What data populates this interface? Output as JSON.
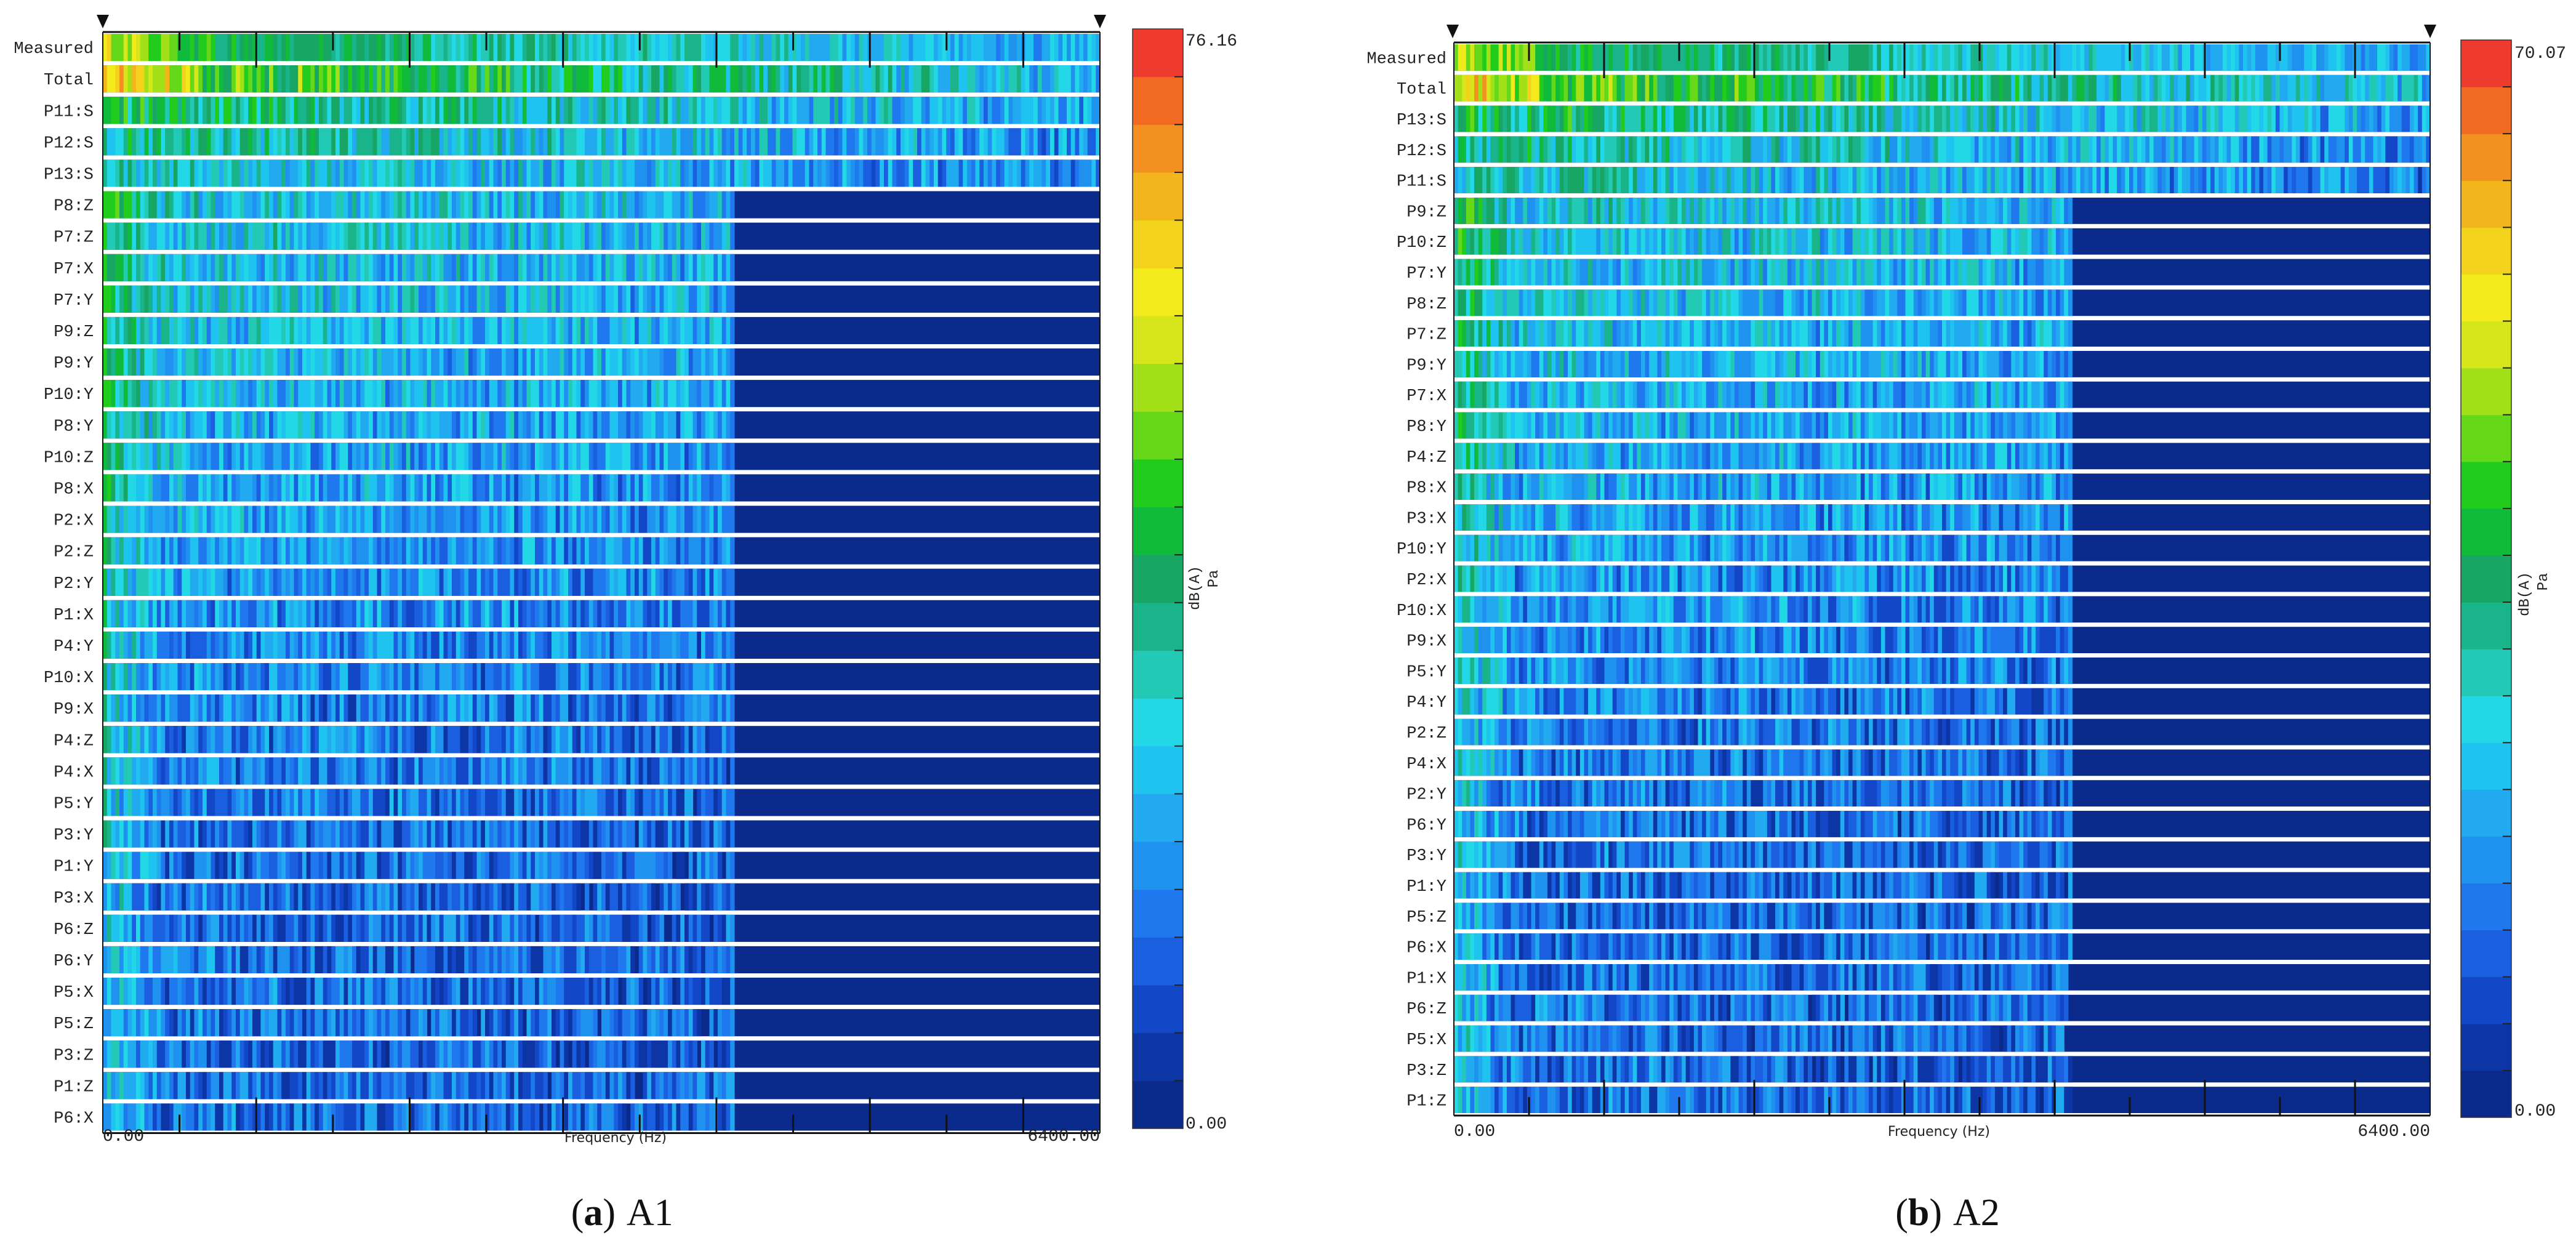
{
  "figure": {
    "panels": [
      {
        "caption_letter": "a",
        "caption_text": "A1",
        "chart_data": {
          "type": "heatmap",
          "title": "",
          "xlabel": "Frequency (Hz)",
          "ylabel": "",
          "xlim": [
            0,
            6400
          ],
          "x_tick_labels": [
            "0.00",
            "6400.00"
          ],
          "rows": [
            "Measured",
            "Total",
            "P11:S",
            "P12:S",
            "P13:S",
            "P8:Z",
            "P7:Z",
            "P7:X",
            "P7:Y",
            "P9:Z",
            "P9:Y",
            "P10:Y",
            "P8:Y",
            "P10:Z",
            "P8:X",
            "P2:X",
            "P2:Z",
            "P2:Y",
            "P1:X",
            "P4:Y",
            "P10:X",
            "P9:X",
            "P4:Z",
            "P4:X",
            "P5:Y",
            "P3:Y",
            "P1:Y",
            "P3:X",
            "P6:Z",
            "P6:Y",
            "P5:X",
            "P5:Z",
            "P3:Z",
            "P1:Z",
            "P6:X"
          ],
          "colorbar": {
            "min": 0,
            "max": 76.16,
            "min_label": "0.00",
            "max_label": "76.16",
            "unit_label": "dB(A)",
            "unit_sub": "Pa"
          },
          "active_band_hz": [
            0,
            4050
          ]
        }
      },
      {
        "caption_letter": "b",
        "caption_text": "A2",
        "chart_data": {
          "type": "heatmap",
          "title": "",
          "xlabel": "Frequency (Hz)",
          "ylabel": "",
          "xlim": [
            0,
            6400
          ],
          "x_tick_labels": [
            "0.00",
            "6400.00"
          ],
          "rows": [
            "Measured",
            "Total",
            "P13:S",
            "P12:S",
            "P11:S",
            "P9:Z",
            "P10:Z",
            "P7:Y",
            "P8:Z",
            "P7:Z",
            "P9:Y",
            "P7:X",
            "P8:Y",
            "P4:Z",
            "P8:X",
            "P3:X",
            "P10:Y",
            "P2:X",
            "P10:X",
            "P9:X",
            "P5:Y",
            "P4:Y",
            "P2:Z",
            "P4:X",
            "P2:Y",
            "P6:Y",
            "P3:Y",
            "P1:Y",
            "P5:Z",
            "P6:X",
            "P1:X",
            "P6:Z",
            "P5:X",
            "P3:Z",
            "P1:Z"
          ],
          "colorbar": {
            "min": 0,
            "max": 70.07,
            "min_label": "0.00",
            "max_label": "70.07",
            "unit_label": "dB(A)",
            "unit_sub": "Pa"
          },
          "active_band_hz": [
            0,
            4050
          ]
        }
      }
    ],
    "colors": [
      "#0a2a8c",
      "#0c35a6",
      "#1247c7",
      "#1a5fe0",
      "#1f78ee",
      "#1f92f0",
      "#22aaf0",
      "#1fc3f0",
      "#22d8e6",
      "#22c9b4",
      "#1ab48a",
      "#17a663",
      "#10bb3c",
      "#22cc1c",
      "#66d81a",
      "#a2e018",
      "#d6e61a",
      "#f2ea1a",
      "#f2d21a",
      "#f4b41c",
      "#f49020",
      "#f26a22",
      "#ef3a2e"
    ]
  }
}
